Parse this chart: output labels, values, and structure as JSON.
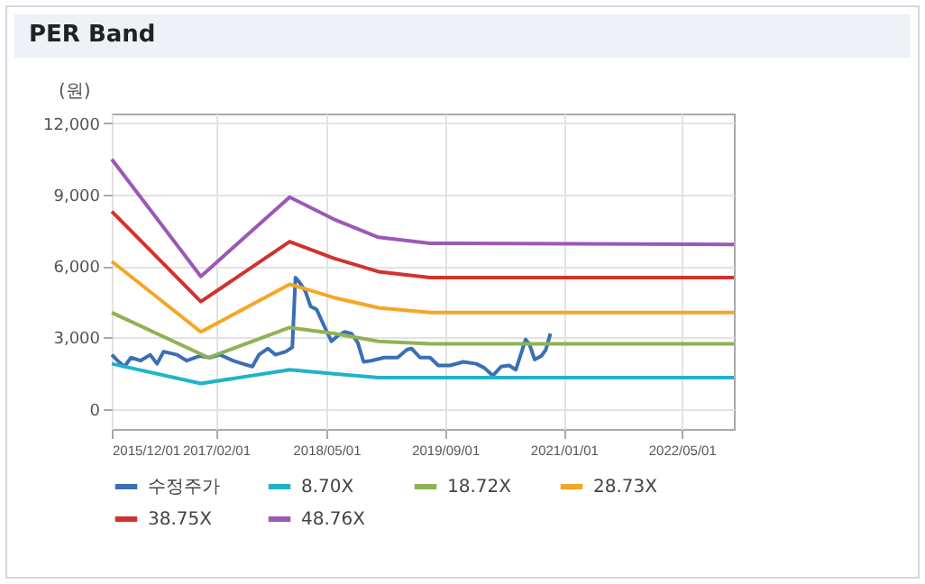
{
  "chart_data": {
    "type": "line",
    "title": "PER Band",
    "ylabel": "(원)",
    "xlim": [
      "2015-12-01",
      "2022-12-01"
    ],
    "xticks": [
      {
        "value": "2015-12-01",
        "label": "2015/12/01"
      },
      {
        "value": "2017-02-01",
        "label": "2017/02/01"
      },
      {
        "value": "2018-05-01",
        "label": "2018/05/01"
      },
      {
        "value": "2019-09-01",
        "label": "2019/09/01"
      },
      {
        "value": "2021-01-01",
        "label": "2021/01/01"
      },
      {
        "value": "2022-05-01",
        "label": "2022/05/01"
      }
    ],
    "ylim": [
      -850,
      12400
    ],
    "yticks": [
      {
        "value": 0,
        "label": "0"
      },
      {
        "value": 3000,
        "label": "3,000"
      },
      {
        "value": 6000,
        "label": "6,000"
      },
      {
        "value": 9000,
        "label": "9,000"
      },
      {
        "value": 12000,
        "label": "12,000"
      }
    ],
    "grid": true,
    "legend": "bottom",
    "series": [
      {
        "name": "수정주가",
        "color": "#3a6fb5",
        "x": [
          "2015-12-01",
          "2015-12-25",
          "2016-01-22",
          "2016-02-18",
          "2016-03-28",
          "2016-05-07",
          "2016-06-04",
          "2016-07-01",
          "2016-08-25",
          "2016-10-04",
          "2016-11-28",
          "2017-01-07",
          "2017-02-18",
          "2017-04-12",
          "2017-05-22",
          "2017-07-01",
          "2017-07-28",
          "2017-09-03",
          "2017-10-04",
          "2017-11-15",
          "2017-12-12",
          "2017-12-25",
          "2018-01-07",
          "2018-02-04",
          "2018-02-25",
          "2018-03-22",
          "2018-04-19",
          "2018-05-22",
          "2018-06-18",
          "2018-07-15",
          "2018-08-12",
          "2018-09-07",
          "2018-10-01",
          "2018-11-01",
          "2018-12-25",
          "2019-02-18",
          "2019-03-28",
          "2019-04-16",
          "2019-05-21",
          "2019-07-01",
          "2019-08-04",
          "2019-09-21",
          "2019-11-15",
          "2020-01-07",
          "2020-02-09",
          "2020-03-15",
          "2020-04-18",
          "2020-05-21",
          "2020-06-18",
          "2020-07-28",
          "2020-08-12",
          "2020-09-03",
          "2020-10-01",
          "2020-10-19",
          "2020-11-07"
        ],
        "values": [
          2270,
          2020,
          1770,
          2150,
          2020,
          2270,
          1890,
          2400,
          2270,
          2020,
          2220,
          2150,
          2270,
          2020,
          1890,
          1770,
          2270,
          2530,
          2270,
          2400,
          2580,
          5510,
          5360,
          4930,
          4300,
          4170,
          3540,
          2830,
          3080,
          3230,
          3160,
          2780,
          1970,
          2020,
          2150,
          2150,
          2480,
          2530,
          2150,
          2150,
          1820,
          1820,
          1970,
          1890,
          1720,
          1390,
          1770,
          1820,
          1640,
          2910,
          2730,
          2070,
          2220,
          2480,
          3160
        ]
      },
      {
        "name": "8.70X",
        "color": "#21b3c9",
        "x": [
          "2015-12-01",
          "2016-12-01",
          "2017-12-01",
          "2018-06-01",
          "2018-12-01",
          "2019-07-01",
          "2022-12-01"
        ],
        "values": [
          1890,
          1060,
          1640,
          1470,
          1310,
          1310,
          1310
        ]
      },
      {
        "name": "18.72X",
        "color": "#8db353",
        "x": [
          "2015-12-01",
          "2017-01-01",
          "2017-12-01",
          "2018-06-01",
          "2018-12-01",
          "2019-07-01",
          "2022-12-01"
        ],
        "values": [
          4040,
          2150,
          3410,
          3160,
          2830,
          2730,
          2730
        ]
      },
      {
        "name": "28.73X",
        "color": "#f5a623",
        "x": [
          "2015-12-01",
          "2016-12-01",
          "2017-12-01",
          "2018-06-01",
          "2018-12-01",
          "2019-07-01",
          "2022-12-01"
        ],
        "values": [
          6190,
          3230,
          5230,
          4670,
          4240,
          4040,
          4040
        ]
      },
      {
        "name": "38.75X",
        "color": "#d2322d",
        "x": [
          "2015-12-01",
          "2016-12-01",
          "2017-12-01",
          "2018-06-01",
          "2018-12-01",
          "2019-07-01",
          "2022-12-01"
        ],
        "values": [
          8290,
          4500,
          7020,
          6320,
          5760,
          5510,
          5510
        ]
      },
      {
        "name": "48.76X",
        "color": "#9b59b6",
        "x": [
          "2015-12-01",
          "2016-12-01",
          "2017-12-01",
          "2018-06-01",
          "2018-12-01",
          "2019-07-01",
          "2022-12-01"
        ],
        "values": [
          10480,
          5560,
          8890,
          7960,
          7200,
          6950,
          6900
        ]
      }
    ]
  }
}
